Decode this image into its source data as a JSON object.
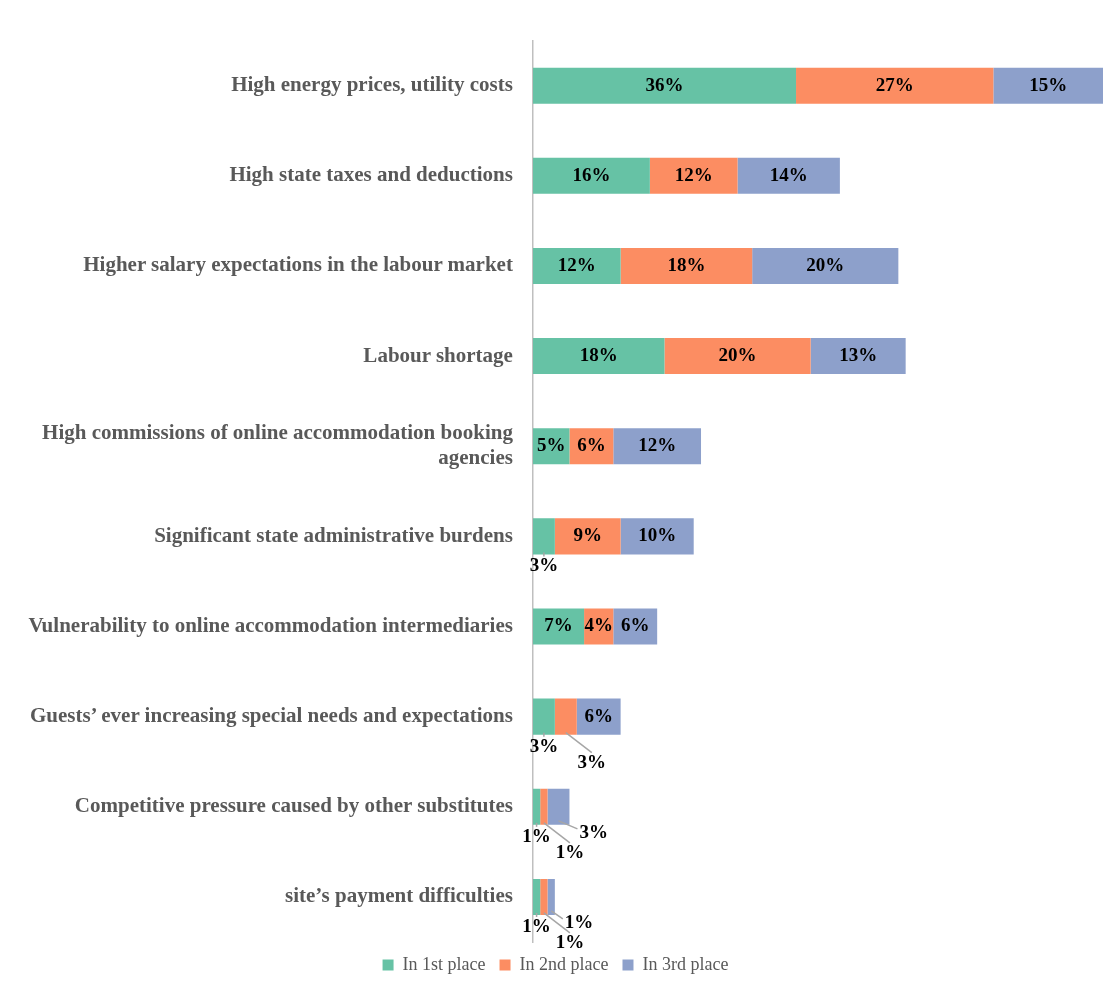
{
  "chart_data": {
    "type": "bar",
    "orientation": "horizontal",
    "stacked": true,
    "legend": "bottom",
    "grid": false,
    "categories": [
      "High energy prices, utility costs",
      "High state taxes and deductions",
      "Higher salary expectations in the labour market",
      "Labour shortage",
      "High commissions of online accommodation booking agencies",
      "Significant state administrative burdens",
      "Vulnerability to online accommodation intermediaries",
      "Guests’ ever increasing special needs and expectations",
      "Competitive pressure caused by other substitutes",
      "site’s payment difficulties"
    ],
    "series": [
      {
        "name": "In 1st place",
        "color": "#66c2a5",
        "values": [
          36,
          16,
          12,
          18,
          5,
          3,
          7,
          3,
          1,
          1
        ],
        "value_labels": [
          "36%",
          "16%",
          "12%",
          "18%",
          "5%",
          "3%",
          "7%",
          "3%",
          "1%",
          "1%"
        ]
      },
      {
        "name": "In 2nd place",
        "color": "#fc8d62",
        "values": [
          27,
          12,
          18,
          20,
          6,
          9,
          4,
          3,
          1,
          1
        ],
        "value_labels": [
          "27%",
          "12%",
          "18%",
          "20%",
          "6%",
          "9%",
          "4%",
          "3%",
          "1%",
          "1%"
        ]
      },
      {
        "name": "In 3rd place",
        "color": "#8da0cb",
        "values": [
          15,
          14,
          20,
          13,
          12,
          10,
          6,
          6,
          3,
          1
        ],
        "value_labels": [
          "15%",
          "14%",
          "20%",
          "13%",
          "12%",
          "10%",
          "6%",
          "6%",
          "3%",
          "1%"
        ]
      }
    ]
  }
}
